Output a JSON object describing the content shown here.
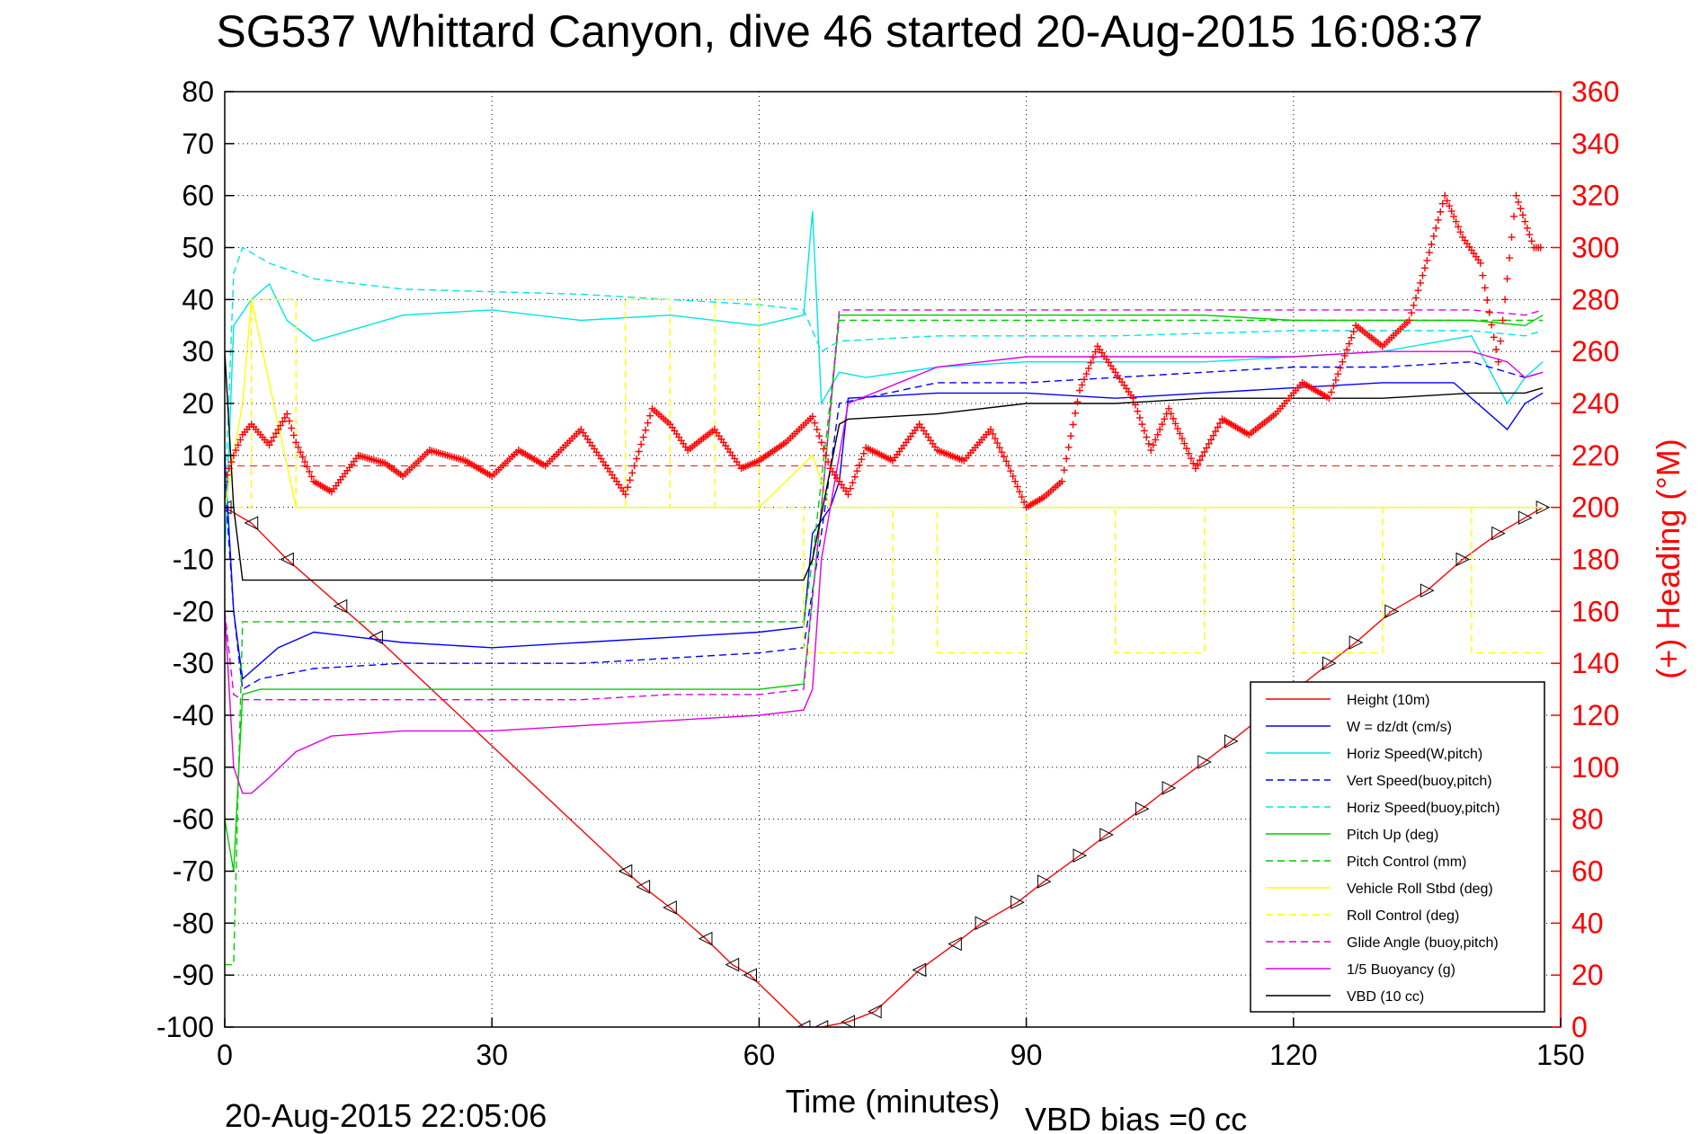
{
  "window": {
    "title": "SG537 Whittard Canyon, dive 46 started 20-Aug-2015 16:08:37"
  },
  "footer": {
    "timestamp": "20-Aug-2015 22:05:06",
    "vbd_bias": "VBD bias =0 cc"
  },
  "colors": {
    "height": "#ff0000",
    "w": "#0000ff",
    "horiz_w": "#00e5e5",
    "vert_buoy": "#0000ff",
    "horiz_buoy": "#00e5e5",
    "pitch_up": "#00cc00",
    "pitch_ctrl": "#00cc00",
    "roll": "#ffff00",
    "roll_ctrl": "#ffff00",
    "glide": "#e000e0",
    "buoy": "#e000e0",
    "vbd": "#000000",
    "heading": "#ff0000"
  },
  "chart_data": {
    "type": "line",
    "title": "SG537 Whittard Canyon, dive 46 started 20-Aug-2015 16:08:37",
    "xlabel": "Time (minutes)",
    "ylabel": "",
    "ylabel_right": "(+) Heading (°M)",
    "xlim": [
      0,
      150
    ],
    "ylim": [
      -100,
      80
    ],
    "ylim_right": [
      0,
      360
    ],
    "xticks": [
      "0",
      "30",
      "60",
      "90",
      "120",
      "150"
    ],
    "yticks": [
      "80",
      "70",
      "60",
      "50",
      "40",
      "30",
      "20",
      "10",
      "0",
      "-10",
      "-20",
      "-30",
      "-40",
      "-50",
      "-60",
      "-70",
      "-80",
      "-90",
      "-100"
    ],
    "yticks_right": [
      "360",
      "340",
      "320",
      "300",
      "280",
      "260",
      "240",
      "220",
      "200",
      "180",
      "160",
      "140",
      "120",
      "100",
      "80",
      "60",
      "40",
      "20",
      "0"
    ],
    "grid": true,
    "legend_position": "bottom-right",
    "series": [
      {
        "name": "Height (10m)",
        "style": "solid",
        "color": "#ff0000",
        "x": [
          0,
          3,
          7,
          13,
          17,
          45,
          47,
          50,
          54,
          57,
          59,
          65,
          67,
          70,
          73,
          78,
          82,
          85,
          89,
          92,
          96,
          99,
          103,
          106,
          110,
          113,
          124,
          127,
          131,
          135,
          139,
          143,
          146,
          148
        ],
        "y": [
          0,
          -3,
          -10,
          -19,
          -25,
          -70,
          -73,
          -77,
          -83,
          -88,
          -90,
          -100,
          -100,
          -99,
          -97,
          -89,
          -84,
          -80,
          -76,
          -72,
          -67,
          -63,
          -58,
          -54,
          -49,
          -45,
          -30,
          -26,
          -20,
          -16,
          -10,
          -5,
          -2,
          0
        ]
      },
      {
        "name": "W = dz/dt (cm/s)",
        "style": "solid",
        "color": "#0000ff",
        "x": [
          0,
          1,
          2,
          4,
          6,
          10,
          20,
          30,
          40,
          50,
          60,
          65,
          66,
          68,
          69,
          70,
          80,
          90,
          100,
          110,
          120,
          130,
          138,
          144,
          146,
          148
        ],
        "y": [
          10,
          -20,
          -33,
          -30,
          -27,
          -24,
          -26,
          -27,
          -26,
          -25,
          -24,
          -23,
          -5,
          0,
          5,
          21,
          22,
          22,
          21,
          22,
          23,
          24,
          24,
          15,
          20,
          22
        ]
      },
      {
        "name": "Horiz Speed(W,pitch)",
        "style": "solid",
        "color": "#00e5e5",
        "x": [
          0,
          1,
          3,
          5,
          7,
          10,
          20,
          30,
          40,
          50,
          60,
          65,
          66,
          67,
          69,
          72,
          80,
          90,
          100,
          110,
          120,
          130,
          140,
          144,
          146,
          148
        ],
        "y": [
          -10,
          35,
          40,
          43,
          36,
          32,
          37,
          38,
          36,
          37,
          35,
          37,
          57,
          20,
          26,
          25,
          27,
          28,
          28,
          28,
          29,
          30,
          33,
          20,
          25,
          28
        ]
      },
      {
        "name": "Vert Speed(buoy,pitch)",
        "style": "dashed",
        "color": "#0000ff",
        "x": [
          0,
          1,
          2,
          4,
          10,
          20,
          30,
          40,
          50,
          60,
          65,
          67,
          69,
          80,
          90,
          100,
          110,
          120,
          130,
          140,
          146,
          148
        ],
        "y": [
          5,
          -20,
          -35,
          -33,
          -31,
          -30,
          -30,
          -30,
          -29,
          -28,
          -27,
          -5,
          20,
          24,
          24,
          25,
          26,
          27,
          27,
          28,
          25,
          26
        ]
      },
      {
        "name": "Horiz Speed(buoy,pitch)",
        "style": "dashed",
        "color": "#00e5e5",
        "x": [
          0,
          1,
          2,
          5,
          10,
          20,
          40,
          60,
          65,
          67,
          69,
          80,
          90,
          100,
          120,
          140,
          146,
          148
        ],
        "y": [
          0,
          45,
          50,
          47,
          44,
          42,
          41,
          39,
          38,
          30,
          32,
          33,
          33,
          33,
          34,
          34,
          33,
          34
        ]
      },
      {
        "name": "Pitch Up (deg)",
        "style": "solid",
        "color": "#00cc00",
        "x": [
          0,
          1,
          2,
          4,
          10,
          20,
          30,
          40,
          50,
          60,
          65,
          67,
          69,
          80,
          90,
          100,
          110,
          120,
          130,
          140,
          146,
          148
        ],
        "y": [
          -60,
          -70,
          -36,
          -35,
          -35,
          -35,
          -35,
          -35,
          -35,
          -35,
          -34,
          0,
          37,
          37,
          37,
          37,
          37,
          36,
          36,
          36,
          35,
          37
        ]
      },
      {
        "name": "Pitch Control (mm)",
        "style": "dashed",
        "color": "#00cc00",
        "x": [
          0,
          1,
          2,
          65,
          66,
          69,
          80,
          100,
          120,
          140,
          148
        ],
        "y": [
          -88,
          -88,
          -22,
          -22,
          -10,
          36,
          36,
          36,
          36,
          36,
          36
        ]
      },
      {
        "name": "Vehicle Roll Stbd (deg)",
        "style": "solid",
        "color": "#ffff00",
        "x": [
          0,
          1,
          2,
          3,
          8,
          30,
          60,
          66,
          68,
          70,
          100,
          130,
          148
        ],
        "y": [
          0,
          10,
          20,
          40,
          0,
          0,
          0,
          10,
          0,
          0,
          0,
          0,
          0
        ]
      },
      {
        "name": "Roll Control (deg)",
        "style": "dashed",
        "color": "#ffff00",
        "x": [
          0,
          3,
          3,
          8,
          8,
          45,
          45,
          50,
          50,
          55,
          55,
          60,
          60,
          65,
          65,
          75,
          75,
          80,
          80,
          90,
          90,
          100,
          100,
          110,
          110,
          120,
          120,
          130,
          130,
          140,
          140,
          148
        ],
        "y": [
          0,
          0,
          40,
          40,
          0,
          0,
          40,
          40,
          0,
          0,
          40,
          40,
          0,
          0,
          -28,
          -28,
          0,
          0,
          -28,
          -28,
          0,
          0,
          -28,
          -28,
          0,
          0,
          -28,
          -28,
          0,
          0,
          -28,
          -28
        ]
      },
      {
        "name": "Glide Angle (buoy,pitch)",
        "style": "dashed",
        "color": "#e000e0",
        "x": [
          0,
          1,
          2,
          10,
          20,
          30,
          40,
          50,
          60,
          65,
          67,
          69,
          80,
          90,
          100,
          110,
          120,
          130,
          140,
          146,
          148
        ],
        "y": [
          -20,
          -36,
          -37,
          -37,
          -37,
          -37,
          -37,
          -36,
          -36,
          -35,
          0,
          38,
          38,
          38,
          38,
          38,
          38,
          38,
          38,
          37,
          38
        ]
      },
      {
        "name": "1/5 Buoyancy (g)",
        "style": "solid",
        "color": "#e000e0",
        "x": [
          0,
          1,
          2,
          3,
          5,
          8,
          12,
          20,
          30,
          40,
          50,
          60,
          65,
          66,
          67,
          70,
          80,
          90,
          100,
          110,
          120,
          130,
          140,
          144,
          146,
          148
        ],
        "y": [
          -20,
          -50,
          -55,
          -55,
          -52,
          -47,
          -44,
          -43,
          -43,
          -42,
          -41,
          -40,
          -39,
          -35,
          -10,
          20,
          27,
          29,
          29,
          29,
          29,
          30,
          30,
          28,
          25,
          26
        ]
      },
      {
        "name": "VBD (10 cc)",
        "style": "solid",
        "color": "#000000",
        "x": [
          0,
          1,
          2,
          65,
          66,
          69,
          70,
          80,
          90,
          100,
          110,
          120,
          130,
          140,
          146,
          148
        ],
        "y": [
          30,
          0,
          -14,
          -14,
          -10,
          16,
          17,
          18,
          20,
          20,
          21,
          21,
          21,
          22,
          22,
          23
        ]
      },
      {
        "name": "(+) Heading (°M)",
        "style": "marker",
        "color": "#ff0000",
        "axis": "right",
        "x": [
          0,
          1,
          2,
          3,
          5,
          7,
          8,
          10,
          12,
          15,
          18,
          20,
          23,
          27,
          30,
          33,
          36,
          40,
          45,
          48,
          50,
          52,
          55,
          58,
          60,
          63,
          66,
          68,
          70,
          72,
          75,
          78,
          80,
          83,
          86,
          88,
          90,
          92,
          94,
          96,
          98,
          100,
          102,
          104,
          106,
          109,
          112,
          115,
          118,
          121,
          124,
          127,
          130,
          133,
          135,
          137,
          139,
          141,
          143,
          145,
          147,
          148
        ],
        "y": [
          210,
          220,
          228,
          232,
          224,
          236,
          225,
          210,
          206,
          220,
          217,
          212,
          222,
          218,
          212,
          222,
          216,
          230,
          205,
          238,
          232,
          222,
          230,
          215,
          218,
          225,
          235,
          215,
          205,
          223,
          218,
          232,
          222,
          218,
          230,
          216,
          200,
          204,
          210,
          245,
          262,
          252,
          242,
          222,
          238,
          215,
          234,
          228,
          236,
          248,
          242,
          270,
          262,
          272,
          295,
          320,
          304,
          294,
          256,
          320,
          300,
          300
        ]
      }
    ]
  }
}
